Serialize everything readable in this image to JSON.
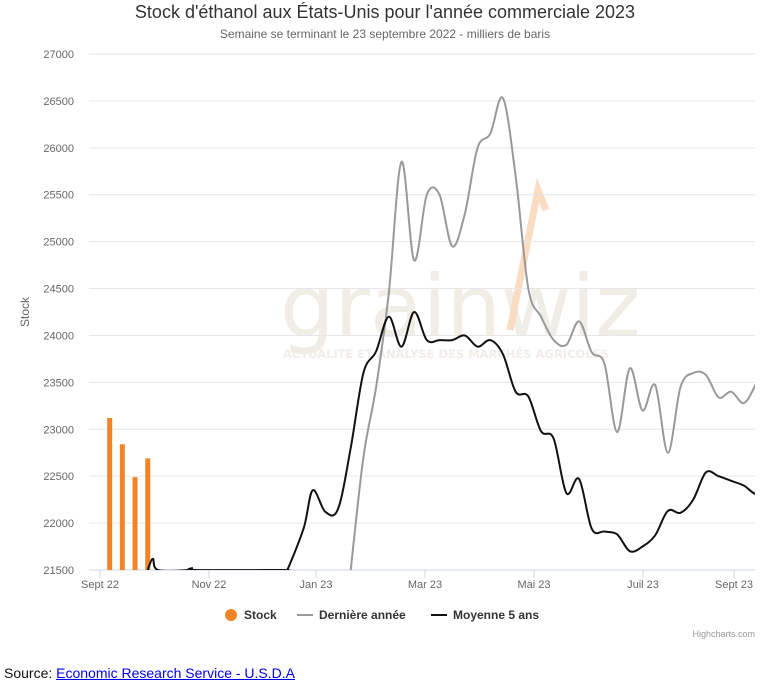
{
  "chart_data": {
    "type": "line",
    "title": "Stock d'éthanol aux États-Unis pour l'année commerciale 2023",
    "subtitle": "Semaine se terminant le 23 septembre 2022 - milliers de baris",
    "ylabel": "Stock",
    "xlabel": "",
    "ylim": [
      21500,
      27000
    ],
    "y_ticks": [
      21500,
      22000,
      22500,
      23000,
      23500,
      24000,
      24500,
      25000,
      25500,
      26000,
      26500,
      27000
    ],
    "x_week_range": [
      0,
      52.5
    ],
    "x_ticks": [
      {
        "label": "Sept 22",
        "week": 0
      },
      {
        "label": "Nov 22",
        "week": 9.86
      },
      {
        "label": "Jan 23",
        "week": 19.86
      },
      {
        "label": "Mar 23",
        "week": 30.0
      },
      {
        "label": "Mai 23",
        "week": 39.86
      },
      {
        "label": "Juil 23",
        "week": 49.86
      },
      {
        "label": "Sept 23",
        "week": 59.71
      }
    ],
    "grid": true,
    "legend_position": "bottom",
    "series": [
      {
        "name": "Stock",
        "kind": "bar",
        "color": "#f08427",
        "points": [
          [
            1,
            23120
          ],
          [
            2,
            22840
          ],
          [
            3,
            22490
          ],
          [
            4,
            22690
          ]
        ]
      },
      {
        "name": "Dernière année",
        "kind": "line",
        "color": "#999999",
        "points": [
          [
            20,
            21500
          ],
          [
            21,
            22700
          ],
          [
            22,
            23450
          ],
          [
            23,
            24450
          ],
          [
            24,
            25850
          ],
          [
            25,
            24800
          ],
          [
            26,
            25500
          ],
          [
            27,
            25500
          ],
          [
            28,
            24950
          ],
          [
            29,
            25300
          ],
          [
            30,
            26000
          ],
          [
            31,
            26150
          ],
          [
            32,
            26530
          ],
          [
            33,
            25700
          ],
          [
            34,
            24500
          ],
          [
            35,
            24200
          ],
          [
            36,
            23950
          ],
          [
            37,
            23900
          ],
          [
            38,
            24150
          ],
          [
            39,
            23820
          ],
          [
            40,
            23700
          ],
          [
            41,
            22970
          ],
          [
            42,
            23650
          ],
          [
            43,
            23200
          ],
          [
            44,
            23470
          ],
          [
            45,
            22750
          ],
          [
            46,
            23450
          ],
          [
            47,
            23600
          ],
          [
            48,
            23580
          ],
          [
            49,
            23340
          ],
          [
            50,
            23400
          ],
          [
            51,
            23280
          ],
          [
            52,
            23500
          ],
          [
            53,
            23800
          ],
          [
            54,
            23540
          ]
        ]
      },
      {
        "name": "Moyenne 5 ans",
        "kind": "line",
        "color": "#111111",
        "points": [
          [
            4,
            21500
          ],
          [
            4.4,
            21620
          ],
          [
            4.8,
            21500
          ],
          [
            7.2,
            21500
          ],
          [
            7.5,
            21520
          ],
          [
            7.8,
            21500
          ],
          [
            14.8,
            21500
          ],
          [
            15,
            21500
          ],
          [
            16.3,
            21950
          ],
          [
            17,
            22350
          ],
          [
            18,
            22120
          ],
          [
            19,
            22150
          ],
          [
            20,
            22800
          ],
          [
            21,
            23600
          ],
          [
            22,
            23830
          ],
          [
            23,
            24200
          ],
          [
            24,
            23880
          ],
          [
            25,
            24250
          ],
          [
            26,
            23950
          ],
          [
            27,
            23950
          ],
          [
            28,
            23950
          ],
          [
            29,
            24000
          ],
          [
            30,
            23880
          ],
          [
            31,
            23950
          ],
          [
            32,
            23800
          ],
          [
            33,
            23400
          ],
          [
            34,
            23350
          ],
          [
            35,
            22980
          ],
          [
            36,
            22900
          ],
          [
            37,
            22320
          ],
          [
            38,
            22470
          ],
          [
            39,
            21940
          ],
          [
            40,
            21910
          ],
          [
            41,
            21880
          ],
          [
            42,
            21700
          ],
          [
            43,
            21750
          ],
          [
            44,
            21870
          ],
          [
            45,
            22130
          ],
          [
            46,
            22110
          ],
          [
            47,
            22250
          ],
          [
            48,
            22540
          ],
          [
            49,
            22500
          ],
          [
            50,
            22450
          ],
          [
            51,
            22400
          ],
          [
            52,
            22310
          ],
          [
            53,
            22410
          ]
        ]
      }
    ]
  },
  "watermark": {
    "brand": "grainwiz",
    "tagline": "ACTUALITÉ ET ANALYSE DES MARCHÉS AGRICOLES"
  },
  "credits": "Highcharts.com",
  "source": {
    "prefix": "Source: ",
    "link_text": "Economic Research Service - U.S.D.A"
  }
}
